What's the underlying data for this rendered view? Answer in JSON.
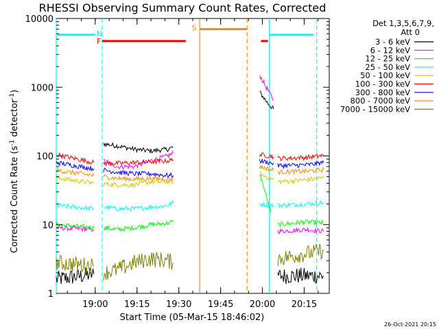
{
  "chart_data": {
    "type": "line",
    "title": "RHESSI Observing Summary Count Rates, Corrected",
    "xlabel": "Start Time (05-Mar-15 18:46:02)",
    "ylabel_main": "Corrected Count Rate (s",
    "ylabel_sup1": "-1",
    "ylabel_mid": " detector",
    "ylabel_sup2": "-1",
    "ylabel_end": ")",
    "yscale": "log",
    "ylim": [
      1,
      10000
    ],
    "xlim_minutes": [
      0,
      98
    ],
    "x_ticks": [
      {
        "label": "19:00",
        "minute": 14
      },
      {
        "label": "19:15",
        "minute": 29
      },
      {
        "label": "19:30",
        "minute": 44
      },
      {
        "label": "19:45",
        "minute": 59
      },
      {
        "label": "20:00",
        "minute": 74
      },
      {
        "label": "20:15",
        "minute": 89
      }
    ],
    "y_ticks": [
      {
        "label": "1",
        "value": 1
      },
      {
        "label": "10",
        "value": 10
      },
      {
        "label": "100",
        "value": 100
      },
      {
        "label": "1000",
        "value": 1000
      },
      {
        "label": "10000",
        "value": 10000
      }
    ],
    "legend_header": [
      "Det 1,3,5,6,7,9,",
      "Att 0"
    ],
    "footer_date": "26-Oct-2021 20:15",
    "series": [
      {
        "name": "3 - 6 keV",
        "color": "#000000",
        "segments": [
          [
            [
              0,
              1.6
            ],
            [
              13.5,
              1.9
            ]
          ],
          [
            [
              17,
              150
            ],
            [
              22,
              140
            ],
            [
              28,
              125
            ],
            [
              34,
              118
            ],
            [
              40,
              125
            ],
            [
              42,
              135
            ]
          ],
          [
            [
              73,
              850
            ],
            [
              76,
              580
            ],
            [
              78,
              480
            ]
          ],
          [
            [
              79.5,
              1.8
            ],
            [
              92,
              1.8
            ],
            [
              96,
              1.8
            ]
          ]
        ]
      },
      {
        "name": "6 - 12 keV",
        "color": "#ff00ff",
        "segments": [
          [
            [
              0,
              9
            ],
            [
              13.5,
              8.5
            ]
          ],
          [
            [
              17,
              85
            ],
            [
              22,
              70
            ],
            [
              28,
              70
            ],
            [
              34,
              85
            ],
            [
              40,
              100
            ],
            [
              42,
              110
            ]
          ],
          [
            [
              73,
              1500
            ],
            [
              76,
              900
            ],
            [
              78,
              650
            ]
          ],
          [
            [
              79.5,
              8
            ],
            [
              90,
              8.5
            ],
            [
              96,
              8
            ]
          ]
        ]
      },
      {
        "name": "12 - 25 keV",
        "color": "#00ff00",
        "segments": [
          [
            [
              0,
              10
            ],
            [
              13.5,
              9
            ]
          ],
          [
            [
              17,
              9
            ],
            [
              22,
              8.5
            ],
            [
              28,
              9
            ],
            [
              34,
              10
            ],
            [
              40,
              10.5
            ],
            [
              42,
              11
            ]
          ],
          [
            [
              73,
              55
            ],
            [
              75,
              30
            ],
            [
              77,
              15
            ]
          ],
          [
            [
              79.5,
              10
            ],
            [
              90,
              11
            ],
            [
              96,
              10.5
            ]
          ]
        ]
      },
      {
        "name": "25 - 50 keV",
        "color": "#00ffff",
        "segments": [
          [
            [
              0,
              19
            ],
            [
              13.5,
              17
            ]
          ],
          [
            [
              17,
              18
            ],
            [
              22,
              17
            ],
            [
              28,
              17
            ],
            [
              34,
              18
            ],
            [
              40,
              19
            ],
            [
              42,
              21
            ]
          ],
          [
            [
              73,
              20
            ],
            [
              78,
              19
            ]
          ],
          [
            [
              79.5,
              19
            ],
            [
              90,
              20
            ],
            [
              96,
              21
            ]
          ]
        ]
      },
      {
        "name": "50 - 100 keV",
        "color": "#cccc00",
        "segments": [
          [
            [
              0,
              48
            ],
            [
              13.5,
              40
            ]
          ],
          [
            [
              17,
              39
            ],
            [
              22,
              38
            ],
            [
              28,
              38
            ],
            [
              34,
              42
            ],
            [
              40,
              42
            ],
            [
              42,
              43
            ]
          ],
          [
            [
              73,
              55
            ],
            [
              78,
              45
            ]
          ],
          [
            [
              79.5,
              42
            ],
            [
              90,
              45
            ],
            [
              96,
              48
            ]
          ]
        ]
      },
      {
        "name": "100 - 300 keV",
        "color": "#ff0000",
        "segments": [
          [
            [
              0,
              105
            ],
            [
              13.5,
              80
            ]
          ],
          [
            [
              17,
              78
            ],
            [
              22,
              78
            ],
            [
              28,
              80
            ],
            [
              34,
              82
            ],
            [
              40,
              85
            ],
            [
              42,
              88
            ]
          ],
          [
            [
              73,
              105
            ],
            [
              78,
              98
            ]
          ],
          [
            [
              79.5,
              92
            ],
            [
              90,
              95
            ],
            [
              96,
              102
            ]
          ]
        ]
      },
      {
        "name": "300 - 800 keV",
        "color": "#0000ff",
        "segments": [
          [
            [
              0,
              80
            ],
            [
              13.5,
              65
            ]
          ],
          [
            [
              17,
              62
            ],
            [
              22,
              58
            ],
            [
              28,
              55
            ],
            [
              34,
              55
            ],
            [
              40,
              52
            ],
            [
              42,
              52
            ]
          ],
          [
            [
              73,
              85
            ],
            [
              78,
              78
            ]
          ],
          [
            [
              79.5,
              72
            ],
            [
              90,
              74
            ],
            [
              96,
              80
            ]
          ]
        ]
      },
      {
        "name": "800 - 7000 keV",
        "color": "#ff8c00",
        "segments": [
          [
            [
              0,
              62
            ],
            [
              13.5,
              52
            ]
          ],
          [
            [
              17,
              50
            ],
            [
              22,
              47
            ],
            [
              28,
              46
            ],
            [
              34,
              47
            ],
            [
              40,
              46
            ],
            [
              42,
              46
            ]
          ],
          [
            [
              73,
              70
            ],
            [
              78,
              62
            ]
          ],
          [
            [
              79.5,
              58
            ],
            [
              90,
              60
            ],
            [
              96,
              63
            ]
          ]
        ]
      },
      {
        "name": "7000 - 15000 keV",
        "color": "#808000",
        "segments": [
          [
            [
              0,
              2.8
            ],
            [
              13.5,
              2.5
            ]
          ],
          [
            [
              17,
              2.0
            ],
            [
              22,
              2.2
            ],
            [
              28,
              2.8
            ],
            [
              34,
              3.2
            ],
            [
              40,
              3.0
            ],
            [
              42,
              2.8
            ]
          ],
          [
            [
              79.5,
              3.2
            ],
            [
              90,
              3.8
            ],
            [
              96,
              4.2
            ]
          ]
        ]
      }
    ],
    "flags": [
      {
        "label": "",
        "color": "#00ffff",
        "y": 5800,
        "x0": 0.5,
        "x1": 14
      },
      {
        "label": "N",
        "color": "#00ffff",
        "label_x": 15.5,
        "label_y": 6000
      },
      {
        "label": "F",
        "color": "#ff0000",
        "y": 4700,
        "x0": 16.5,
        "x1": 46.5,
        "label_x": 15.3,
        "label_y": 4700
      },
      {
        "label": "S",
        "color": "#ff8c00",
        "y": 7000,
        "x0": 51.5,
        "x1": 68.5,
        "label_x": 49.5,
        "label_y": 7300
      },
      {
        "label": "",
        "color": "#ff0000",
        "y": 4700,
        "x0": 73.5,
        "x1": 76
      },
      {
        "label": "",
        "color": "#00ffff",
        "y": 5800,
        "x0": 76.5,
        "x1": 92.5
      }
    ],
    "vlines": [
      {
        "minute": 0,
        "color": "#00ffff",
        "dashed": false
      },
      {
        "minute": 16.5,
        "color": "#00ffff",
        "dashed": true
      },
      {
        "minute": 51.5,
        "color": "#ff8c00",
        "dashed": false
      },
      {
        "minute": 68.5,
        "color": "#ff8c00",
        "dashed": true
      },
      {
        "minute": 76.5,
        "color": "#00ffff",
        "dashed": false
      },
      {
        "minute": 93.5,
        "color": "#00ffff",
        "dashed": true
      }
    ]
  }
}
